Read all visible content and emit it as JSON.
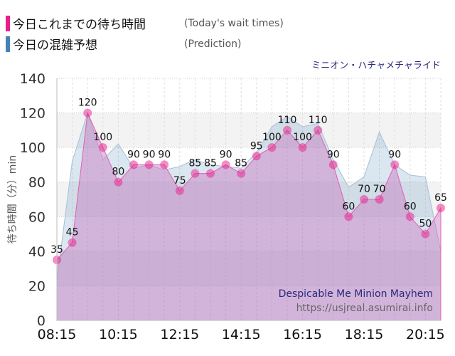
{
  "legend": [
    {
      "label": "今日これまでの待ち時間",
      "en": "(Today's wait times)",
      "color": "#e91e8c"
    },
    {
      "label": "今日の混雑予想",
      "en": "(Prediction)",
      "color": "#4682b4"
    }
  ],
  "chart_data": {
    "type": "area",
    "title": "ミニオン・ハチャメチャライド",
    "ylabel": "待ち時間（分）min",
    "ylim": [
      0,
      140
    ],
    "yticks": [
      "0",
      "20",
      "40",
      "60",
      "80",
      "100",
      "120",
      "140"
    ],
    "xticks": [
      "08:15",
      "10:15",
      "12:15",
      "14:15",
      "16:15",
      "18:15",
      "20:15"
    ],
    "x": [
      "08:15",
      "08:45",
      "09:15",
      "09:45",
      "10:15",
      "10:45",
      "11:15",
      "11:45",
      "12:15",
      "12:45",
      "13:15",
      "13:45",
      "14:15",
      "14:45",
      "15:15",
      "15:45",
      "16:15",
      "16:45",
      "17:15",
      "17:45",
      "18:15",
      "18:45",
      "19:15",
      "19:45",
      "20:15",
      "20:45"
    ],
    "series": [
      {
        "name": "今日これまでの待ち時間",
        "values": [
          35,
          45,
          120,
          100,
          80,
          90,
          90,
          90,
          75,
          85,
          85,
          90,
          85,
          95,
          100,
          110,
          100,
          110,
          90,
          60,
          70,
          70,
          90,
          60,
          50,
          65
        ],
        "color": "#e91e8c"
      },
      {
        "name": "今日の混雑予想",
        "values": [
          23,
          92,
          120,
          93,
          102,
          88,
          90,
          87,
          89,
          93,
          90,
          89,
          88,
          97,
          112,
          118,
          112,
          114,
          93,
          77,
          83,
          109,
          90,
          84,
          83,
          40
        ],
        "color": "#4682b4"
      }
    ],
    "grid": true,
    "watermark": [
      "Despicable Me Minion Mayhem",
      "https://usjreal.asumirai.info"
    ]
  }
}
